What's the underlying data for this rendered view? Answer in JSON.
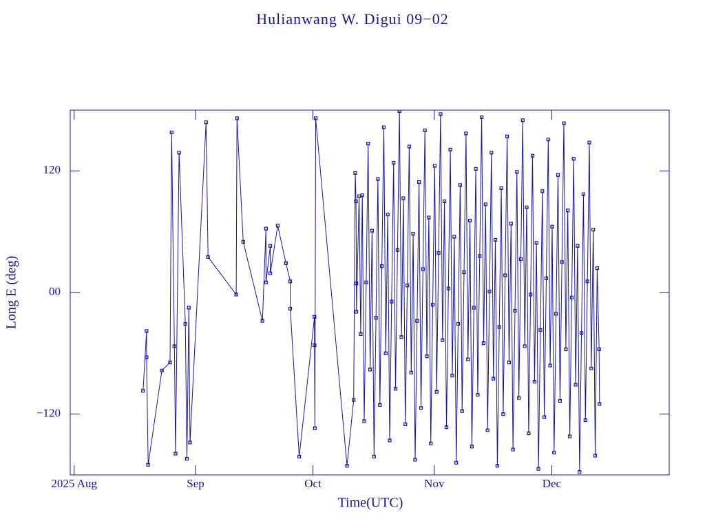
{
  "chart_data": {
    "type": "line",
    "title": "Hulianwang W. Digui 09−02",
    "x_label": "Time(UTC)",
    "y_label": "Long E (deg)",
    "color": "#1414a0",
    "markers": true,
    "xlim": [
      -1,
      152
    ],
    "xticks": [
      {
        "value": 0,
        "label": "2025 Aug"
      },
      {
        "value": 31,
        "label": "Sep"
      },
      {
        "value": 61,
        "label": "Oct"
      },
      {
        "value": 92,
        "label": "Nov"
      },
      {
        "value": 122,
        "label": "Dec"
      }
    ],
    "ylim": [
      -180,
      180
    ],
    "yticks": [
      {
        "value": -120,
        "label": "−120"
      },
      {
        "value": 0,
        "label": "00"
      },
      120
    ],
    "x": [
      17.6,
      18.5,
      18.5,
      18.9,
      22.4,
      24.5,
      24.9,
      25.6,
      25.9,
      26.8,
      28.4,
      28.8,
      29.3,
      29.6,
      33.7,
      34.2,
      41.4,
      41.6,
      43.2,
      48.1,
      49.0,
      49.0,
      50.1,
      50.1,
      52.0,
      54.1,
      55.2,
      55.2,
      57.5,
      61.4,
      61.4,
      61.5,
      61.7,
      69.7,
      71.4,
      71.8,
      72.0,
      72.1,
      72.1,
      72.8,
      73.2,
      73.6,
      74.1,
      74.6,
      75.1,
      75.6,
      76.1,
      76.6,
      77.1,
      77.6,
      78.1,
      78.6,
      79.1,
      79.6,
      80.1,
      80.6,
      81.1,
      81.6,
      82.1,
      82.6,
      83.1,
      83.6,
      84.1,
      84.6,
      85.1,
      85.6,
      86.1,
      86.6,
      87.1,
      87.6,
      88.1,
      88.6,
      89.1,
      89.6,
      90.1,
      90.6,
      91.1,
      91.6,
      92.1,
      92.6,
      93.1,
      93.6,
      94.1,
      94.6,
      95.1,
      95.6,
      96.1,
      96.6,
      97.1,
      97.6,
      98.1,
      98.6,
      99.1,
      99.6,
      100.1,
      100.6,
      101.1,
      101.6,
      102.1,
      102.6,
      103.1,
      103.6,
      104.1,
      104.6,
      105.1,
      105.6,
      106.1,
      106.6,
      107.1,
      107.6,
      108.1,
      108.6,
      109.1,
      109.6,
      110.1,
      110.6,
      111.1,
      111.6,
      112.1,
      112.6,
      113.1,
      113.6,
      114.1,
      114.6,
      115.1,
      115.6,
      116.1,
      116.6,
      117.1,
      117.6,
      118.1,
      118.6,
      119.1,
      119.6,
      120.1,
      120.6,
      121.1,
      121.6,
      122.1,
      122.6,
      123.1,
      123.6,
      124.1,
      124.6,
      125.1,
      125.6,
      126.1,
      126.6,
      127.1,
      127.6,
      128.1,
      128.6,
      129.1,
      129.6,
      130.1,
      130.6,
      131.1,
      131.6,
      132.1,
      132.6,
      133.1,
      133.6,
      134.1,
      134.2
    ],
    "values": [
      -97,
      -38,
      -64,
      -170,
      -77,
      -69,
      158,
      -53,
      -159,
      138,
      -31,
      -164,
      -15,
      -148,
      168,
      35,
      -2,
      172,
      50,
      -28,
      63,
      10,
      46,
      19,
      66,
      29,
      11,
      -16,
      -162,
      -24,
      -52,
      -134,
      172,
      -171,
      -106,
      118,
      90,
      9,
      -19,
      95,
      -41,
      96,
      -127,
      10,
      147,
      -76,
      61,
      -162,
      -25,
      112,
      -111,
      26,
      163,
      -60,
      77,
      -146,
      -9,
      128,
      -95,
      42,
      179,
      -44,
      93,
      -130,
      7,
      144,
      -79,
      58,
      -165,
      -28,
      109,
      -114,
      23,
      160,
      -63,
      74,
      -149,
      -12,
      125,
      -98,
      39,
      176,
      -47,
      90,
      -133,
      4,
      141,
      -82,
      55,
      -168,
      -31,
      106,
      -117,
      20,
      157,
      -66,
      71,
      -152,
      -15,
      122,
      -101,
      36,
      173,
      -50,
      87,
      -136,
      1,
      138,
      -85,
      52,
      -171,
      -34,
      103,
      -120,
      17,
      154,
      -69,
      68,
      -155,
      -18,
      119,
      -104,
      33,
      170,
      -53,
      84,
      -139,
      -2,
      135,
      -88,
      49,
      -174,
      -37,
      100,
      -123,
      14,
      151,
      -72,
      65,
      -158,
      -21,
      116,
      -107,
      30,
      167,
      -56,
      81,
      -142,
      -5,
      132,
      -91,
      46,
      -177,
      -40,
      97,
      -126,
      11,
      148,
      -75,
      62,
      -161,
      24,
      -56,
      -110
    ]
  }
}
